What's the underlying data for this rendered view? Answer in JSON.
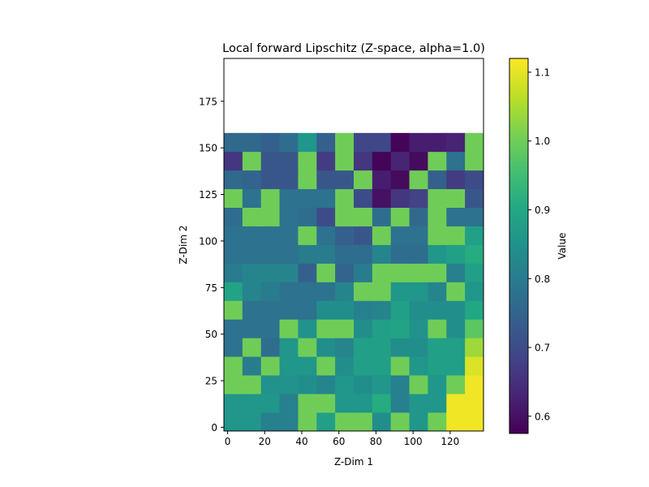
{
  "chart_data": {
    "type": "heatmap",
    "title": "Local forward Lipschitz (Z-space, alpha=1.0)",
    "xlabel": "Z-Dim 1",
    "ylabel": "Z-Dim 2",
    "colorbar_label": "Value",
    "colormap": "viridis",
    "x_range": [
      -2,
      138
    ],
    "y_range": [
      -2,
      198
    ],
    "cell_width": 10,
    "cell_height": 10,
    "x_ticks": [
      0,
      20,
      40,
      60,
      80,
      100,
      120
    ],
    "x_tick_labels": [
      "0",
      "20",
      "40",
      "60",
      "80",
      "100",
      "120"
    ],
    "y_ticks": [
      0,
      25,
      50,
      75,
      100,
      125,
      150,
      175
    ],
    "y_tick_labels": [
      "0",
      "25",
      "50",
      "75",
      "100",
      "125",
      "150",
      "175"
    ],
    "color_range": [
      0.575,
      1.12
    ],
    "colorbar_ticks": [
      0.6,
      0.7,
      0.8,
      0.9,
      1.0,
      1.1
    ],
    "colorbar_tick_labels": [
      "0.6",
      "0.7",
      "0.8",
      "0.9",
      "1.0",
      "1.1"
    ],
    "rows_from_bottom": [
      [
        0.86,
        0.86,
        0.81,
        0.81,
        1.0,
        0.88,
        1.0,
        1.0,
        0.84,
        1.0,
        0.86,
        1.0,
        1.11,
        1.11
      ],
      [
        0.86,
        0.86,
        0.86,
        0.81,
        1.0,
        1.0,
        0.86,
        0.86,
        0.91,
        0.81,
        0.86,
        0.86,
        1.11,
        1.11
      ],
      [
        1.0,
        1.0,
        0.85,
        0.85,
        0.84,
        0.82,
        0.86,
        0.84,
        0.86,
        0.81,
        1.0,
        0.86,
        1.0,
        1.11
      ],
      [
        1.0,
        0.8,
        1.0,
        0.86,
        0.86,
        1.0,
        0.84,
        0.88,
        0.88,
        1.0,
        0.86,
        0.88,
        0.88,
        1.09
      ],
      [
        0.78,
        1.0,
        0.77,
        0.86,
        1.0,
        0.84,
        0.82,
        0.88,
        0.88,
        0.84,
        0.84,
        0.88,
        0.88,
        1.04
      ],
      [
        0.78,
        0.78,
        0.78,
        1.0,
        0.85,
        1.0,
        1.0,
        0.84,
        0.88,
        0.89,
        0.85,
        1.0,
        0.84,
        0.98
      ],
      [
        1.0,
        0.78,
        0.78,
        0.78,
        0.78,
        0.84,
        0.84,
        0.81,
        0.82,
        0.88,
        0.84,
        0.84,
        0.84,
        0.9
      ],
      [
        0.89,
        0.82,
        0.8,
        0.78,
        0.78,
        0.78,
        0.82,
        1.0,
        1.0,
        0.86,
        0.86,
        0.82,
        1.0,
        0.86
      ],
      [
        0.8,
        0.82,
        0.82,
        0.82,
        0.74,
        1.0,
        0.75,
        0.8,
        1.0,
        1.0,
        1.0,
        1.0,
        0.81,
        0.88
      ],
      [
        0.78,
        0.78,
        0.78,
        0.78,
        0.8,
        0.8,
        0.77,
        0.77,
        0.82,
        0.77,
        0.77,
        0.86,
        0.88,
        0.91
      ],
      [
        0.78,
        0.78,
        0.78,
        0.78,
        1.0,
        0.78,
        0.74,
        0.72,
        1.0,
        0.78,
        0.78,
        1.0,
        1.0,
        0.88
      ],
      [
        0.77,
        1.0,
        1.0,
        0.78,
        0.77,
        0.7,
        1.0,
        1.0,
        0.77,
        1.0,
        0.76,
        1.0,
        0.78,
        0.78
      ],
      [
        1.0,
        0.78,
        1.0,
        0.78,
        0.78,
        0.78,
        1.0,
        0.7,
        0.6,
        0.66,
        0.68,
        1.0,
        1.0,
        0.72
      ],
      [
        0.76,
        0.75,
        0.72,
        0.72,
        1.0,
        0.72,
        0.72,
        1.0,
        0.62,
        0.59,
        1.0,
        0.74,
        0.67,
        0.7
      ],
      [
        0.66,
        1.0,
        0.72,
        0.72,
        1.0,
        0.67,
        1.0,
        0.66,
        0.58,
        0.63,
        0.59,
        1.0,
        0.78,
        1.0
      ],
      [
        0.76,
        0.76,
        0.74,
        0.77,
        0.86,
        0.74,
        1.0,
        0.69,
        0.69,
        0.58,
        0.62,
        0.62,
        0.63,
        1.0
      ]
    ]
  }
}
